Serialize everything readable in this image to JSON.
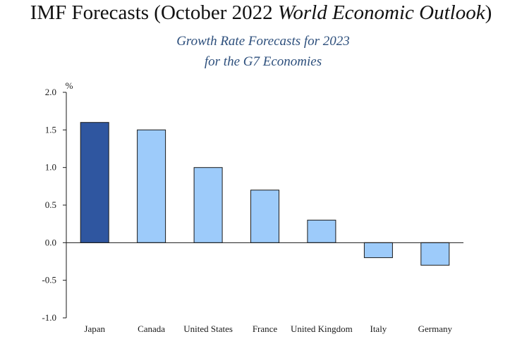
{
  "header": {
    "title_prefix": "IMF Forecasts (October 2022 ",
    "title_emphasis": "World Economic Outlook",
    "title_suffix": ")",
    "subtitle_line1": "Growth Rate Forecasts for 2023",
    "subtitle_line2": "for the G7 Economies"
  },
  "colors": {
    "highlight_bar": "#2f56a0",
    "normal_bar": "#9dcbfa",
    "bar_stroke": "#1a1a1a",
    "axis": "#1a1a1a",
    "title": "#111111",
    "subtitle": "#2d4f7c"
  },
  "chart_data": {
    "type": "bar",
    "categories": [
      "Japan",
      "Canada",
      "United States",
      "France",
      "United Kingdom",
      "Italy",
      "Germany"
    ],
    "values": [
      1.6,
      1.5,
      1.0,
      0.7,
      0.3,
      -0.2,
      -0.3
    ],
    "highlight": [
      "Japan"
    ],
    "ylabel": "%",
    "xlabel": "",
    "ylim": [
      -1.0,
      2.0
    ],
    "yticks": [
      "2.0",
      "1.5",
      "1.0",
      "0.5",
      "0.0",
      "-0.5",
      "-1.0"
    ],
    "grid": false,
    "legend": "none"
  }
}
